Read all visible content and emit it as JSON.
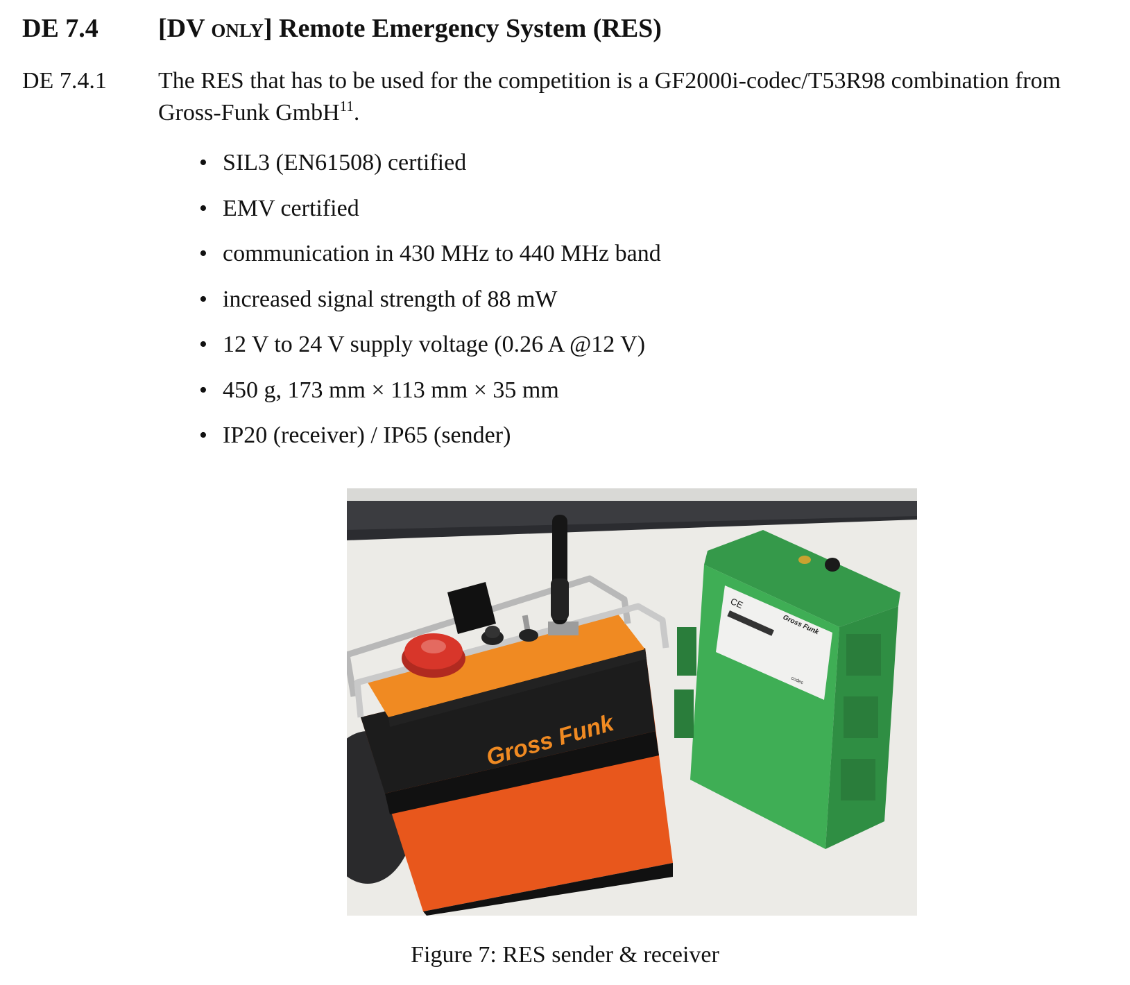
{
  "heading": {
    "number": "DE 7.4",
    "bracket_open": "[DV ",
    "only": "only",
    "bracket_close": "]",
    "title": " Remote Emergency System (RES)"
  },
  "rule": {
    "number": "DE 7.4.1",
    "text_part1": "The RES that has to be used for the competition is a GF2000i-codec/T53R98 combination from Gross-Funk GmbH",
    "footnote_mark": "11",
    "text_end": "."
  },
  "bullet_glyph": "•",
  "bullets": [
    "SIL3 (EN61508) certified",
    "EMV certified",
    "communication in 430 MHz to 440 MHz band",
    "increased signal strength of 88 mW",
    "12 V to 24 V supply voltage (0.26 A @12 V)",
    "450 g, 173 mm × 113 mm × 35 mm",
    "IP20 (receiver) / IP65 (sender)"
  ],
  "photo": {
    "bag_logo": "Gross Funk",
    "receiver_ce": "CE",
    "receiver_brand": "Gross Funk",
    "receiver_label": "codec"
  },
  "caption": "Figure 7: RES sender & receiver",
  "colors": {
    "bag_orange": "#e8571c",
    "panel_orange": "#f08a22",
    "receiver_green": "#3fae55",
    "stop_red": "#d8362a"
  }
}
